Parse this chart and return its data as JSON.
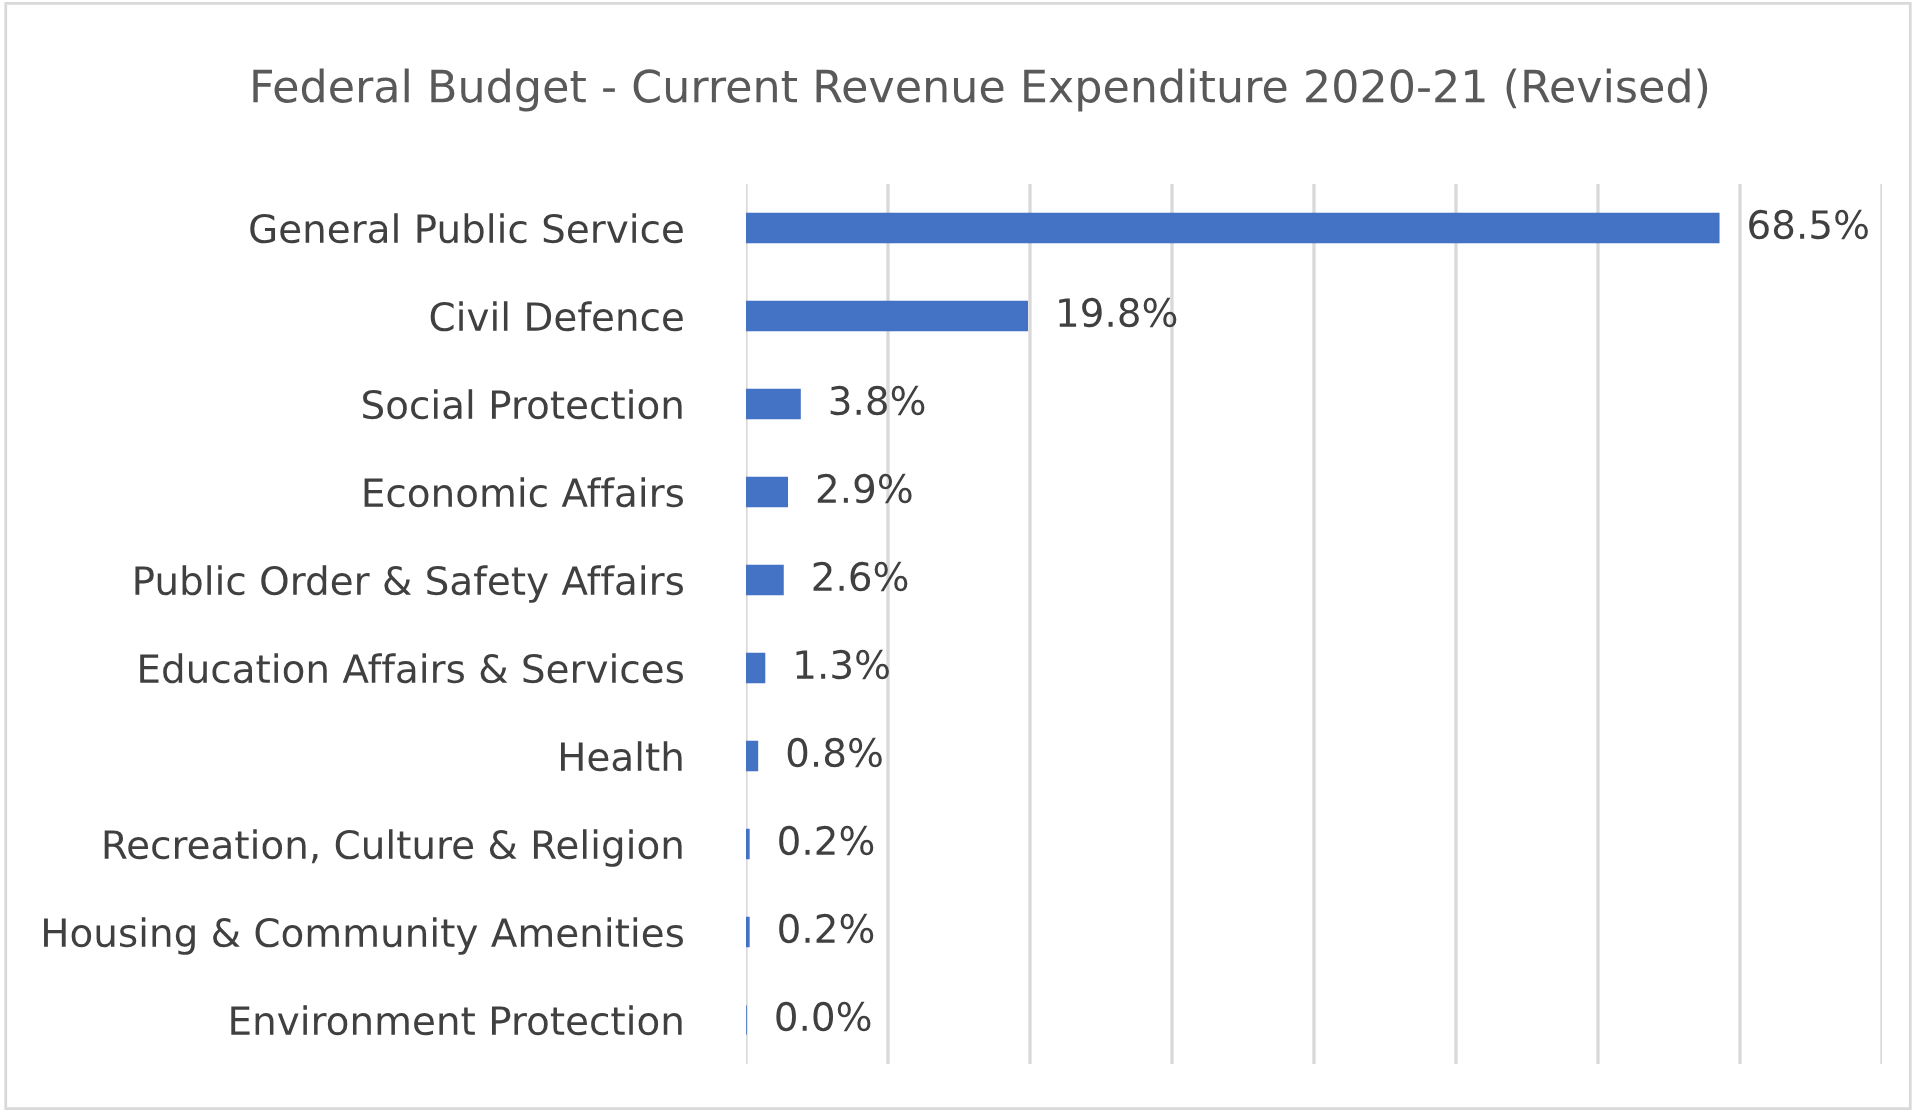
{
  "chart_data": {
    "type": "bar",
    "orientation": "horizontal",
    "title": "Federal Budget - Current Revenue Expenditure 2020-21 (Revised)",
    "categories": [
      "General Public Service",
      "Civil Defence",
      "Social Protection",
      "Economic Affairs",
      "Public Order & Safety Affairs",
      "Education Affairs & Services",
      "Health",
      "Recreation, Culture & Religion",
      "Housing & Community Amenities",
      "Environment Protection"
    ],
    "values": [
      68.5,
      19.8,
      3.8,
      2.9,
      2.6,
      1.3,
      0.8,
      0.2,
      0.2,
      0.0
    ],
    "value_labels": [
      "68.5%",
      "19.8%",
      "3.8%",
      "2.9%",
      "2.6%",
      "1.3%",
      "0.8%",
      "0.2%",
      "0.2%",
      "0.0%"
    ],
    "color": "#4472c4",
    "xlim": [
      0,
      80
    ],
    "xticks": [
      {
        "value": 0,
        "label": null
      },
      {
        "value": 10,
        "label": null
      },
      {
        "value": 20,
        "label": null
      },
      {
        "value": 30,
        "label": null
      },
      {
        "value": 40,
        "label": null
      },
      {
        "value": 50,
        "label": null
      },
      {
        "value": 60,
        "label": null
      },
      {
        "value": 70,
        "label": null
      },
      {
        "value": 80,
        "label": null
      }
    ],
    "grid": "x",
    "tick_labels": "y"
  }
}
